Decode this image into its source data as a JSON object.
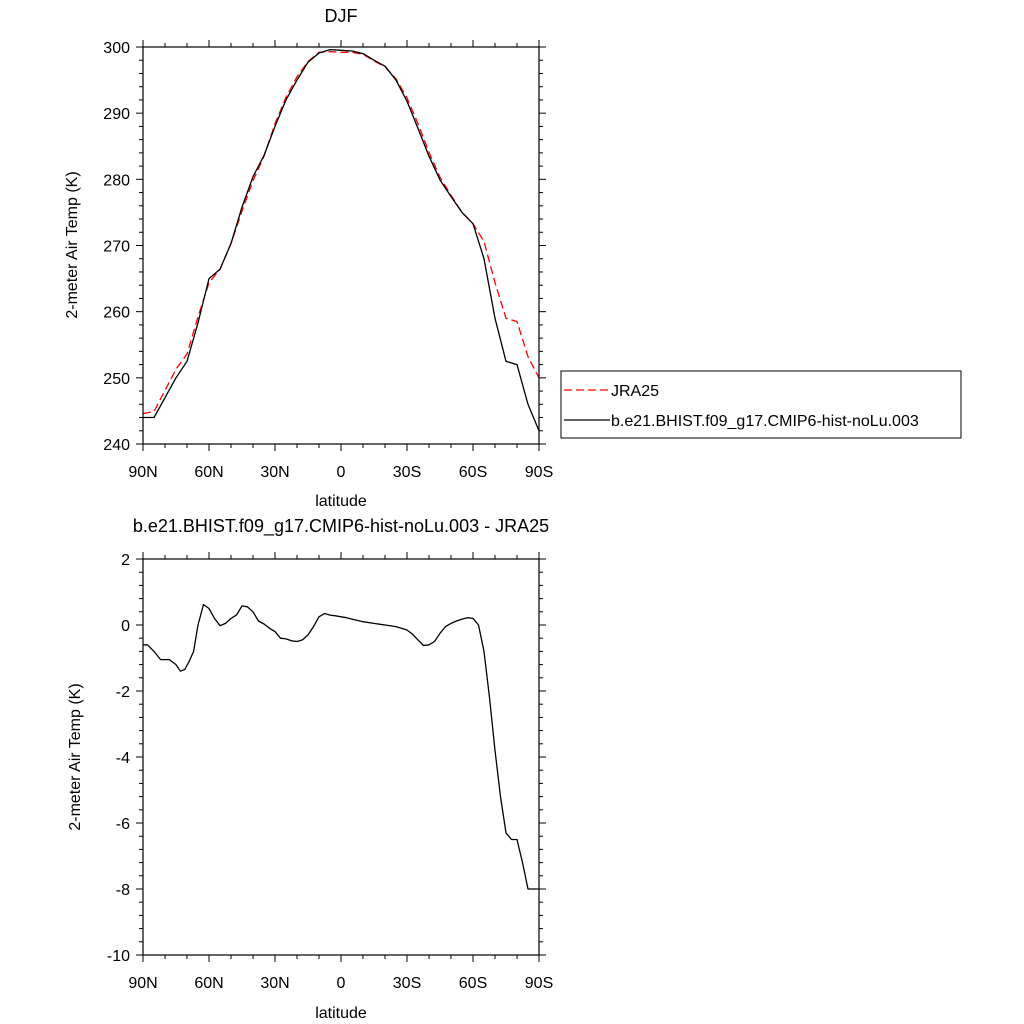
{
  "chart_data": [
    {
      "type": "line",
      "title": "DJF",
      "xlabel": "latitude",
      "ylabel": "2-meter Air Temp (K)",
      "xlim": [
        90,
        -90
      ],
      "ylim": [
        240,
        300
      ],
      "xticks": [
        90,
        60,
        30,
        0,
        -30,
        -60,
        -90
      ],
      "xtick_labels": [
        "90N",
        "60N",
        "30N",
        "0",
        "30S",
        "60S",
        "90S"
      ],
      "yticks": [
        240,
        250,
        260,
        270,
        280,
        290,
        300
      ],
      "ytick_labels": [
        "240",
        "250",
        "260",
        "270",
        "280",
        "290",
        "300"
      ],
      "grid": false,
      "legend_placement": "right",
      "series": [
        {
          "name": "JRA25",
          "color": "#ff0000",
          "dash": "dashed",
          "x": [
            90,
            85,
            80,
            75,
            70,
            65,
            60,
            55,
            50,
            45,
            40,
            35,
            30,
            25,
            20,
            15,
            10,
            5,
            0,
            -5,
            -10,
            -15,
            -20,
            -25,
            -30,
            -35,
            -40,
            -45,
            -50,
            -55,
            -60,
            -65,
            -70,
            -75,
            -80,
            -85,
            -90
          ],
          "values": [
            244.6,
            244.9,
            248.1,
            251.3,
            253.6,
            259.2,
            264.4,
            266.4,
            270.3,
            275.2,
            279.8,
            283.5,
            288.4,
            292.4,
            295.5,
            297.8,
            299.2,
            299.3,
            299.2,
            299.2,
            298.9,
            297.9,
            297.0,
            295.2,
            292.3,
            288.4,
            284.1,
            280.3,
            277.6,
            275.0,
            273.3,
            270.6,
            264.4,
            259.0,
            258.5,
            253.2,
            250.0
          ]
        },
        {
          "name": "b.e21.BHIST.f09_g17.CMIP6-hist-noLu.003",
          "color": "#000000",
          "dash": "solid",
          "x": [
            90,
            85,
            80,
            75,
            70,
            65,
            60,
            55,
            50,
            45,
            40,
            35,
            30,
            25,
            20,
            15,
            10,
            5,
            0,
            -5,
            -10,
            -15,
            -20,
            -25,
            -30,
            -35,
            -40,
            -45,
            -50,
            -55,
            -60,
            -65,
            -70,
            -75,
            -80,
            -85,
            -90
          ],
          "values": [
            244.0,
            244.0,
            247.0,
            250.0,
            252.5,
            258.3,
            265.0,
            266.4,
            270.3,
            275.8,
            280.4,
            283.6,
            288.0,
            292.0,
            295.0,
            297.7,
            299.1,
            299.6,
            299.5,
            299.4,
            299.0,
            298.0,
            297.1,
            295.0,
            291.8,
            287.7,
            283.5,
            279.9,
            277.4,
            275.0,
            273.3,
            268.0,
            259.0,
            252.5,
            252.0,
            246.0,
            242.0
          ]
        }
      ]
    },
    {
      "type": "line",
      "title": "b.e21.BHIST.f09_g17.CMIP6-hist-noLu.003 - JRA25",
      "xlabel": "latitude",
      "ylabel": "2-meter Air Temp (K)",
      "xlim": [
        90,
        -90
      ],
      "ylim": [
        -10,
        2
      ],
      "xticks": [
        90,
        60,
        30,
        0,
        -30,
        -60,
        -90
      ],
      "xtick_labels": [
        "90N",
        "60N",
        "30N",
        "0",
        "30S",
        "60S",
        "90S"
      ],
      "yticks": [
        -10,
        -8,
        -6,
        -4,
        -2,
        0,
        2
      ],
      "ytick_labels": [
        "-10",
        "-8",
        "-6",
        "-4",
        "-2",
        "0",
        "2"
      ],
      "grid": false,
      "series": [
        {
          "color": "#000000",
          "dash": "solid",
          "x": [
            90,
            88,
            85,
            82,
            78,
            75,
            73,
            71,
            69,
            67,
            65,
            62.5,
            60,
            57.5,
            55,
            52.5,
            50,
            47.5,
            45,
            42.5,
            40,
            37.5,
            35,
            32.5,
            30,
            27.5,
            25,
            22.5,
            20,
            17.5,
            15,
            12.5,
            10,
            7.5,
            5,
            2.5,
            0,
            -2.5,
            -5,
            -10,
            -15,
            -20,
            -25,
            -30,
            -32.5,
            -35,
            -37.5,
            -40,
            -42.5,
            -45,
            -47.5,
            -50,
            -52.5,
            -55,
            -57.5,
            -60,
            -62.5,
            -65,
            -67.5,
            -70,
            -72.5,
            -75,
            -77.5,
            -80,
            -82.5,
            -85,
            -87.5,
            -90
          ],
          "values": [
            -0.6,
            -0.6,
            -0.8,
            -1.05,
            -1.05,
            -1.2,
            -1.4,
            -1.35,
            -1.1,
            -0.8,
            0.0,
            0.62,
            0.5,
            0.2,
            -0.02,
            0.05,
            0.2,
            0.3,
            0.58,
            0.55,
            0.4,
            0.12,
            0.03,
            -0.1,
            -0.2,
            -0.4,
            -0.42,
            -0.48,
            -0.5,
            -0.45,
            -0.3,
            -0.05,
            0.25,
            0.35,
            0.3,
            0.28,
            0.25,
            0.22,
            0.18,
            0.1,
            0.05,
            0.0,
            -0.05,
            -0.15,
            -0.28,
            -0.45,
            -0.62,
            -0.6,
            -0.5,
            -0.25,
            -0.05,
            0.05,
            0.12,
            0.18,
            0.22,
            0.2,
            0.0,
            -0.8,
            -2.2,
            -3.8,
            -5.2,
            -6.3,
            -6.5,
            -6.5,
            -7.2,
            -8.0,
            -8.0,
            -8.0
          ]
        }
      ]
    }
  ]
}
